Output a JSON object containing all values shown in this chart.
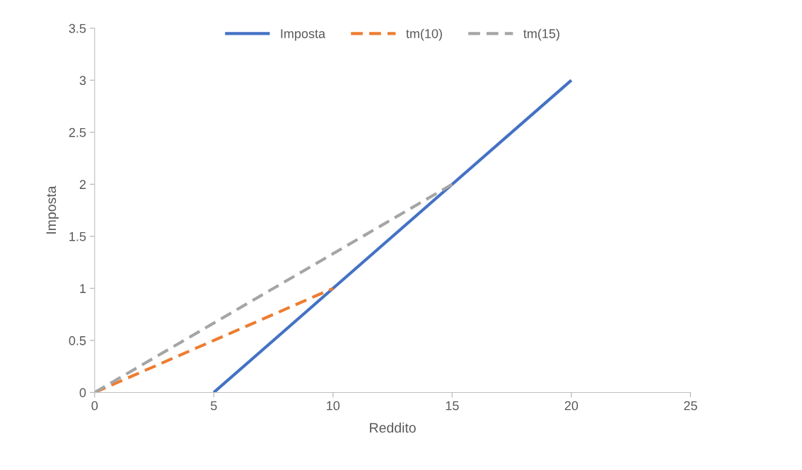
{
  "chart_data": {
    "type": "line",
    "xlabel": "Reddito",
    "ylabel": "Imposta",
    "series": [
      {
        "name": "Imposta",
        "color": "#4472c4",
        "x": [
          5,
          20
        ],
        "values": [
          0,
          3
        ],
        "line_style": "solid"
      },
      {
        "name": "tm(10)",
        "color": "#ed7d31",
        "x": [
          0,
          10
        ],
        "values": [
          0,
          1
        ],
        "line_style": "dashed"
      },
      {
        "name": "tm(15)",
        "color": "#a5a5a5",
        "x": [
          0,
          15
        ],
        "values": [
          0,
          2
        ],
        "line_style": "dashed"
      }
    ],
    "xlim": [
      0,
      25
    ],
    "xticks": [
      0,
      5,
      10,
      15,
      20,
      25
    ],
    "ylim": [
      0,
      3.5
    ],
    "yticks": [
      0,
      0.5,
      1,
      1.5,
      2,
      2.5,
      3,
      3.5
    ],
    "grid": false,
    "legend": "top",
    "marker": "none"
  }
}
